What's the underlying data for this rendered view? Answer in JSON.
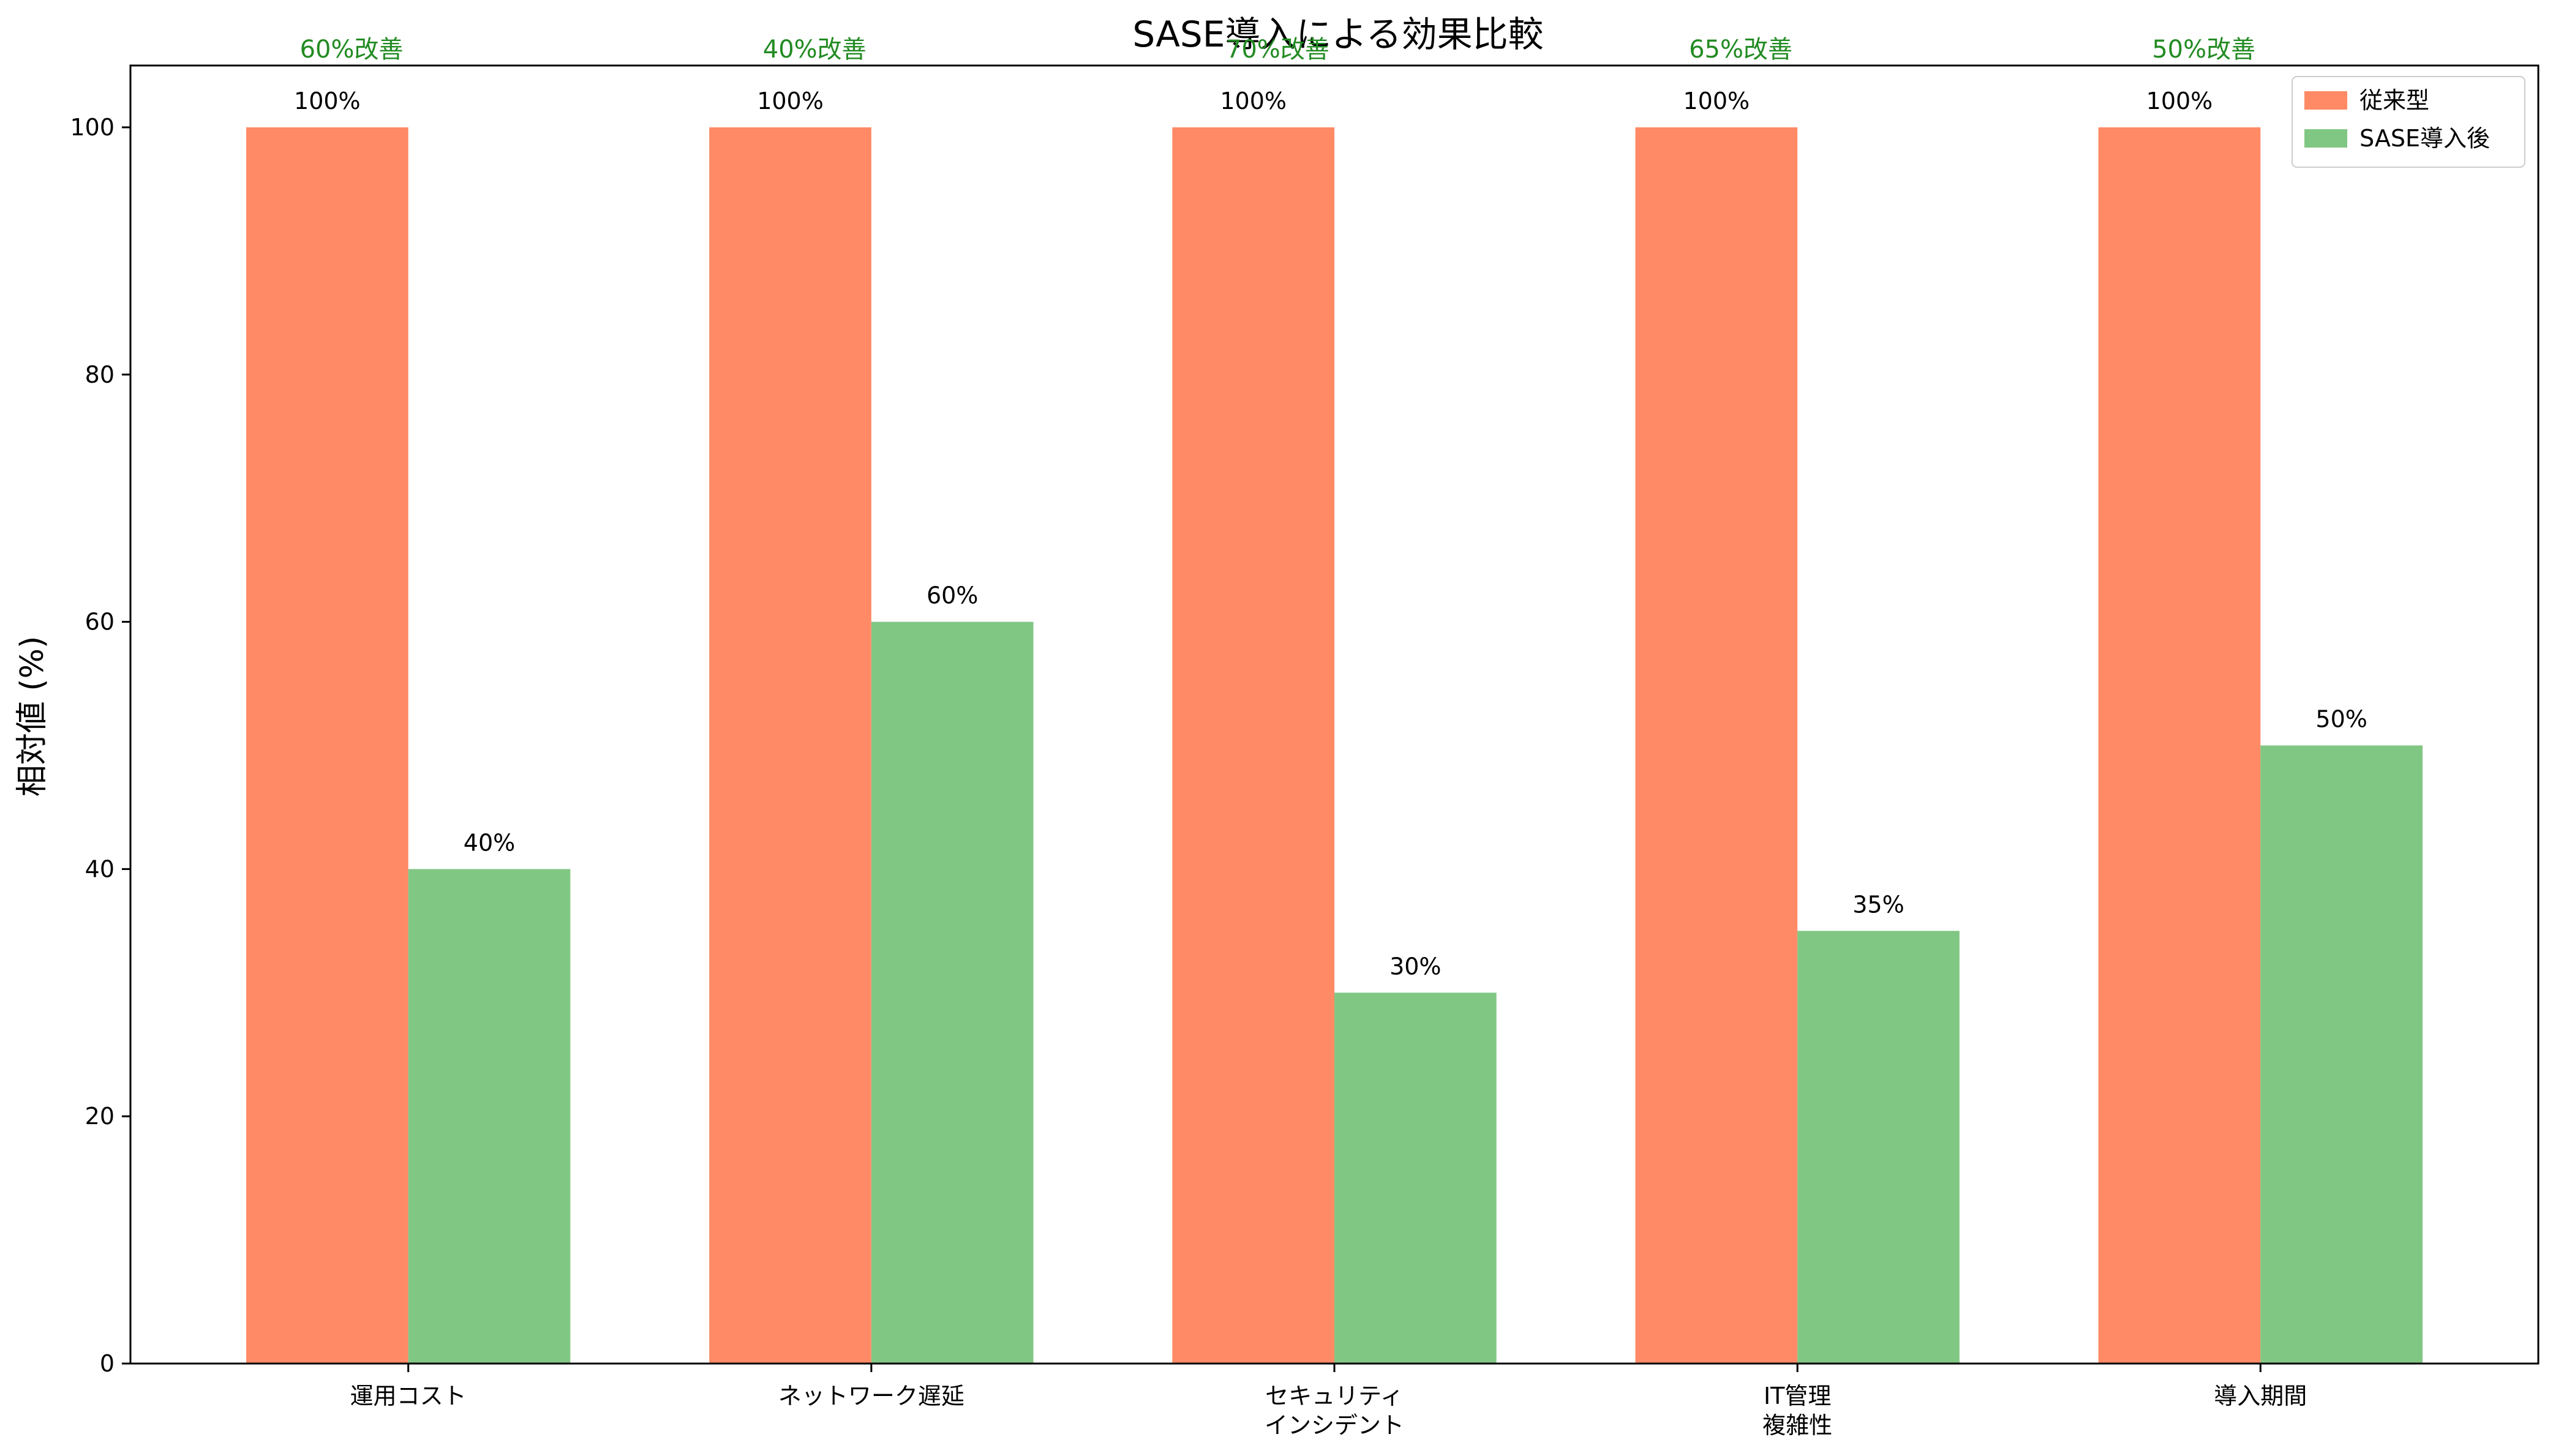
{
  "chart_data": {
    "type": "bar",
    "title": "SASE導入による効果比較",
    "xlabel": "",
    "ylabel": "相対値 (%)",
    "ylim": [
      0,
      105
    ],
    "yticks": [
      0,
      20,
      40,
      60,
      80,
      100
    ],
    "categories": [
      [
        "運用コスト"
      ],
      [
        "ネットワーク遅延"
      ],
      [
        "セキュリティ",
        "インシデント"
      ],
      [
        "IT管理",
        "複雑性"
      ],
      [
        "導入期間"
      ]
    ],
    "series": [
      {
        "name": "従来型",
        "color": "#ff8a65",
        "values": [
          100,
          100,
          100,
          100,
          100
        ]
      },
      {
        "name": "SASE導入後",
        "color": "#81c784",
        "values": [
          40,
          60,
          30,
          35,
          50
        ]
      }
    ],
    "value_labels": [
      [
        "100%",
        "100%",
        "100%",
        "100%",
        "100%"
      ],
      [
        "40%",
        "60%",
        "30%",
        "35%",
        "50%"
      ]
    ],
    "improvement_labels": [
      "60%改善",
      "40%改善",
      "70%改善",
      "65%改善",
      "50%改善"
    ],
    "improvement_color": "#228b22",
    "legend_position": "top-right",
    "grid": false
  }
}
